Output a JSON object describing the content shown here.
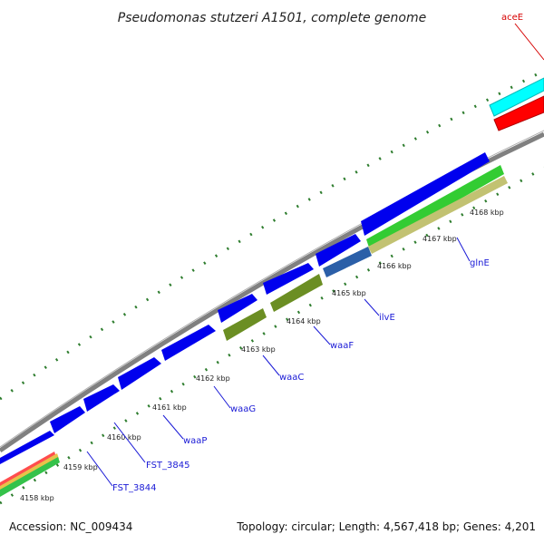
{
  "title": "Pseudomonas stutzeri A1501, complete genome",
  "footer": {
    "accession": "Accession: NC_009434",
    "topology": "Topology: circular; Length: 4,567,418 bp; Genes: 4,201"
  },
  "ticks": [
    "4158 kbp",
    "4159 kbp",
    "4160 kbp",
    "4161 kbp",
    "4162 kbp",
    "4163 kbp",
    "4164 kbp",
    "4165 kbp",
    "4166 kbp",
    "4167 kbp",
    "4168 kbp"
  ],
  "genes": [
    "FST_3844",
    "FST_3845",
    "waaP",
    "waaG",
    "waaC",
    "waaF",
    "ilvE",
    "glnE"
  ],
  "highlight_gene": "aceE",
  "colors": {
    "cds": "#0000ee",
    "olive": "#6b8e23",
    "cyan": "#00ffff",
    "red": "#ff0000",
    "backbone": "#888888",
    "dots": "#2e7d2e",
    "label": "#1a1ad6"
  }
}
